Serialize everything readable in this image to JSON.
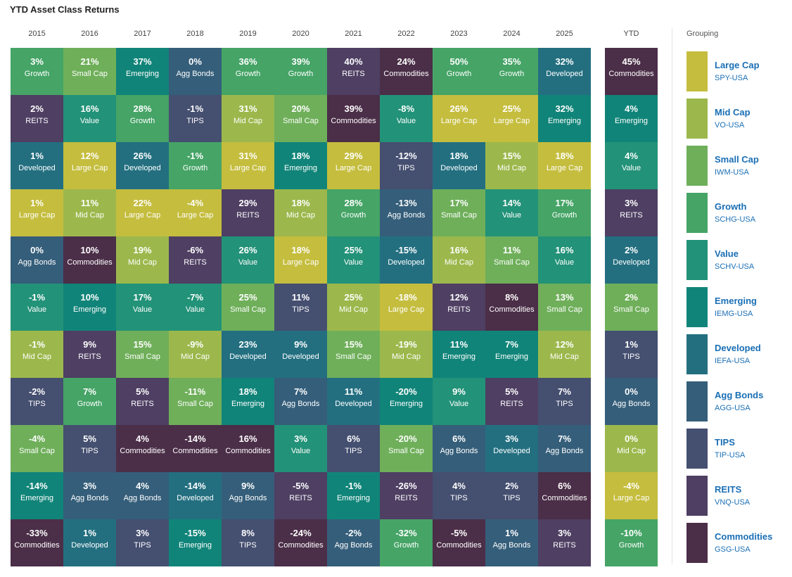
{
  "title": "YTD Asset Class Returns",
  "legend_title": "Grouping",
  "legend": [
    {
      "name": "Large Cap",
      "ticker": "SPY-USA"
    },
    {
      "name": "Mid Cap",
      "ticker": "VO-USA"
    },
    {
      "name": "Small Cap",
      "ticker": "IWM-USA"
    },
    {
      "name": "Growth",
      "ticker": "SCHG-USA"
    },
    {
      "name": "Value",
      "ticker": "SCHV-USA"
    },
    {
      "name": "Emerging",
      "ticker": "IEMG-USA"
    },
    {
      "name": "Developed",
      "ticker": "IEFA-USA"
    },
    {
      "name": "Agg Bonds",
      "ticker": "AGG-USA"
    },
    {
      "name": "TIPS",
      "ticker": "TIP-USA"
    },
    {
      "name": "REITS",
      "ticker": "VNQ-USA"
    },
    {
      "name": "Commodities",
      "ticker": "GSG-USA"
    }
  ],
  "colors": {
    "Large Cap": "#c5bd3e",
    "Mid Cap": "#9cb84c",
    "Small Cap": "#6faf5a",
    "Growth": "#45a466",
    "Value": "#229278",
    "Emerging": "#118479",
    "Developed": "#236f80",
    "Agg Bonds": "#355e7a",
    "TIPS": "#454f70",
    "REITS": "#4e3f63",
    "Commodities": "#4b2e48"
  },
  "chart_data": {
    "type": "table",
    "title": "YTD Asset Class Returns",
    "columns": [
      {
        "year": "2015",
        "cells": [
          {
            "value": "3%",
            "asset": "Growth"
          },
          {
            "value": "2%",
            "asset": "REITS"
          },
          {
            "value": "1%",
            "asset": "Developed"
          },
          {
            "value": "1%",
            "asset": "Large Cap"
          },
          {
            "value": "0%",
            "asset": "Agg Bonds"
          },
          {
            "value": "-1%",
            "asset": "Value"
          },
          {
            "value": "-1%",
            "asset": "Mid Cap"
          },
          {
            "value": "-2%",
            "asset": "TIPS"
          },
          {
            "value": "-4%",
            "asset": "Small Cap"
          },
          {
            "value": "-14%",
            "asset": "Emerging"
          },
          {
            "value": "-33%",
            "asset": "Commodities"
          }
        ]
      },
      {
        "year": "2016",
        "cells": [
          {
            "value": "21%",
            "asset": "Small Cap"
          },
          {
            "value": "16%",
            "asset": "Value"
          },
          {
            "value": "12%",
            "asset": "Large Cap"
          },
          {
            "value": "11%",
            "asset": "Mid Cap"
          },
          {
            "value": "10%",
            "asset": "Commodities"
          },
          {
            "value": "10%",
            "asset": "Emerging"
          },
          {
            "value": "9%",
            "asset": "REITS"
          },
          {
            "value": "7%",
            "asset": "Growth"
          },
          {
            "value": "5%",
            "asset": "TIPS"
          },
          {
            "value": "3%",
            "asset": "Agg Bonds"
          },
          {
            "value": "1%",
            "asset": "Developed"
          }
        ]
      },
      {
        "year": "2017",
        "cells": [
          {
            "value": "37%",
            "asset": "Emerging"
          },
          {
            "value": "28%",
            "asset": "Growth"
          },
          {
            "value": "26%",
            "asset": "Developed"
          },
          {
            "value": "22%",
            "asset": "Large Cap"
          },
          {
            "value": "19%",
            "asset": "Mid Cap"
          },
          {
            "value": "17%",
            "asset": "Value"
          },
          {
            "value": "15%",
            "asset": "Small Cap"
          },
          {
            "value": "5%",
            "asset": "REITS"
          },
          {
            "value": "4%",
            "asset": "Commodities"
          },
          {
            "value": "4%",
            "asset": "Agg Bonds"
          },
          {
            "value": "3%",
            "asset": "TIPS"
          }
        ]
      },
      {
        "year": "2018",
        "cells": [
          {
            "value": "0%",
            "asset": "Agg Bonds"
          },
          {
            "value": "-1%",
            "asset": "TIPS"
          },
          {
            "value": "-1%",
            "asset": "Growth"
          },
          {
            "value": "-4%",
            "asset": "Large Cap"
          },
          {
            "value": "-6%",
            "asset": "REITS"
          },
          {
            "value": "-7%",
            "asset": "Value"
          },
          {
            "value": "-9%",
            "asset": "Mid Cap"
          },
          {
            "value": "-11%",
            "asset": "Small Cap"
          },
          {
            "value": "-14%",
            "asset": "Commodities"
          },
          {
            "value": "-14%",
            "asset": "Developed"
          },
          {
            "value": "-15%",
            "asset": "Emerging"
          }
        ]
      },
      {
        "year": "2019",
        "cells": [
          {
            "value": "36%",
            "asset": "Growth"
          },
          {
            "value": "31%",
            "asset": "Mid Cap"
          },
          {
            "value": "31%",
            "asset": "Large Cap"
          },
          {
            "value": "29%",
            "asset": "REITS"
          },
          {
            "value": "26%",
            "asset": "Value"
          },
          {
            "value": "25%",
            "asset": "Small Cap"
          },
          {
            "value": "23%",
            "asset": "Developed"
          },
          {
            "value": "18%",
            "asset": "Emerging"
          },
          {
            "value": "16%",
            "asset": "Commodities"
          },
          {
            "value": "9%",
            "asset": "Agg Bonds"
          },
          {
            "value": "8%",
            "asset": "TIPS"
          }
        ]
      },
      {
        "year": "2020",
        "cells": [
          {
            "value": "39%",
            "asset": "Growth"
          },
          {
            "value": "20%",
            "asset": "Small Cap"
          },
          {
            "value": "18%",
            "asset": "Emerging"
          },
          {
            "value": "18%",
            "asset": "Mid Cap"
          },
          {
            "value": "18%",
            "asset": "Large Cap"
          },
          {
            "value": "11%",
            "asset": "TIPS"
          },
          {
            "value": "9%",
            "asset": "Developed"
          },
          {
            "value": "7%",
            "asset": "Agg Bonds"
          },
          {
            "value": "3%",
            "asset": "Value"
          },
          {
            "value": "-5%",
            "asset": "REITS"
          },
          {
            "value": "-24%",
            "asset": "Commodities"
          }
        ]
      },
      {
        "year": "2021",
        "cells": [
          {
            "value": "40%",
            "asset": "REITS"
          },
          {
            "value": "39%",
            "asset": "Commodities"
          },
          {
            "value": "29%",
            "asset": "Large Cap"
          },
          {
            "value": "28%",
            "asset": "Growth"
          },
          {
            "value": "25%",
            "asset": "Value"
          },
          {
            "value": "25%",
            "asset": "Mid Cap"
          },
          {
            "value": "15%",
            "asset": "Small Cap"
          },
          {
            "value": "11%",
            "asset": "Developed"
          },
          {
            "value": "6%",
            "asset": "TIPS"
          },
          {
            "value": "-1%",
            "asset": "Emerging"
          },
          {
            "value": "-2%",
            "asset": "Agg Bonds"
          }
        ]
      },
      {
        "year": "2022",
        "cells": [
          {
            "value": "24%",
            "asset": "Commodities"
          },
          {
            "value": "-8%",
            "asset": "Value"
          },
          {
            "value": "-12%",
            "asset": "TIPS"
          },
          {
            "value": "-13%",
            "asset": "Agg Bonds"
          },
          {
            "value": "-15%",
            "asset": "Developed"
          },
          {
            "value": "-18%",
            "asset": "Large Cap"
          },
          {
            "value": "-19%",
            "asset": "Mid Cap"
          },
          {
            "value": "-20%",
            "asset": "Emerging"
          },
          {
            "value": "-20%",
            "asset": "Small Cap"
          },
          {
            "value": "-26%",
            "asset": "REITS"
          },
          {
            "value": "-32%",
            "asset": "Growth"
          }
        ]
      },
      {
        "year": "2023",
        "cells": [
          {
            "value": "50%",
            "asset": "Growth"
          },
          {
            "value": "26%",
            "asset": "Large Cap"
          },
          {
            "value": "18%",
            "asset": "Developed"
          },
          {
            "value": "17%",
            "asset": "Small Cap"
          },
          {
            "value": "16%",
            "asset": "Mid Cap"
          },
          {
            "value": "12%",
            "asset": "REITS"
          },
          {
            "value": "11%",
            "asset": "Emerging"
          },
          {
            "value": "9%",
            "asset": "Value"
          },
          {
            "value": "6%",
            "asset": "Agg Bonds"
          },
          {
            "value": "4%",
            "asset": "TIPS"
          },
          {
            "value": "-5%",
            "asset": "Commodities"
          }
        ]
      },
      {
        "year": "2024",
        "cells": [
          {
            "value": "35%",
            "asset": "Growth"
          },
          {
            "value": "25%",
            "asset": "Large Cap"
          },
          {
            "value": "15%",
            "asset": "Mid Cap"
          },
          {
            "value": "14%",
            "asset": "Value"
          },
          {
            "value": "11%",
            "asset": "Small Cap"
          },
          {
            "value": "8%",
            "asset": "Commodities"
          },
          {
            "value": "7%",
            "asset": "Emerging"
          },
          {
            "value": "5%",
            "asset": "REITS"
          },
          {
            "value": "3%",
            "asset": "Developed"
          },
          {
            "value": "2%",
            "asset": "TIPS"
          },
          {
            "value": "1%",
            "asset": "Agg Bonds"
          }
        ]
      },
      {
        "year": "2025",
        "cells": [
          {
            "value": "32%",
            "asset": "Developed"
          },
          {
            "value": "32%",
            "asset": "Emerging"
          },
          {
            "value": "18%",
            "asset": "Large Cap"
          },
          {
            "value": "17%",
            "asset": "Growth"
          },
          {
            "value": "16%",
            "asset": "Value"
          },
          {
            "value": "13%",
            "asset": "Small Cap"
          },
          {
            "value": "12%",
            "asset": "Mid Cap"
          },
          {
            "value": "7%",
            "asset": "TIPS"
          },
          {
            "value": "7%",
            "asset": "Agg Bonds"
          },
          {
            "value": "6%",
            "asset": "Commodities"
          },
          {
            "value": "3%",
            "asset": "REITS"
          }
        ]
      },
      {
        "year": "YTD",
        "cells": [
          {
            "value": "45%",
            "asset": "Commodities"
          },
          {
            "value": "4%",
            "asset": "Emerging"
          },
          {
            "value": "4%",
            "asset": "Value"
          },
          {
            "value": "3%",
            "asset": "REITS"
          },
          {
            "value": "2%",
            "asset": "Developed"
          },
          {
            "value": "2%",
            "asset": "Small Cap"
          },
          {
            "value": "1%",
            "asset": "TIPS"
          },
          {
            "value": "0%",
            "asset": "Agg Bonds"
          },
          {
            "value": "0%",
            "asset": "Mid Cap"
          },
          {
            "value": "-4%",
            "asset": "Large Cap"
          },
          {
            "value": "-10%",
            "asset": "Growth"
          }
        ]
      }
    ]
  }
}
